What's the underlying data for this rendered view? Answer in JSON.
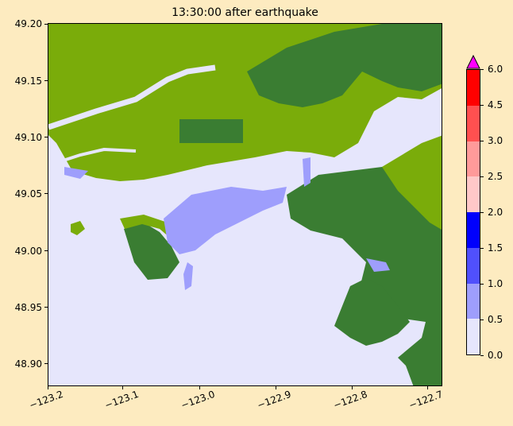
{
  "title": "13:30:00 after earthquake",
  "chart_data": {
    "type": "heatmap",
    "title": "13:30:00 after earthquake",
    "xlim": [
      -123.2,
      -122.69
    ],
    "ylim": [
      48.88,
      49.2
    ],
    "x_ticks": [
      "−123.2",
      "−123.1",
      "−123.0",
      "−122.9",
      "−122.8",
      "−122.7"
    ],
    "x_tick_values": [
      -123.2,
      -123.1,
      -123.0,
      -122.9,
      -122.8,
      -122.7
    ],
    "y_ticks": [
      "49.20",
      "49.15",
      "49.10",
      "49.05",
      "49.00",
      "48.95",
      "48.90"
    ],
    "y_tick_values": [
      49.2,
      49.15,
      49.1,
      49.05,
      49.0,
      48.95,
      48.9
    ],
    "colorbar": {
      "ticks": [
        "0.0",
        "0.5",
        "1.0",
        "1.5",
        "2.0",
        "2.5",
        "3.0",
        "4.5",
        "6.0"
      ],
      "bounds": [
        0.0,
        0.5,
        1.0,
        1.5,
        2.0,
        2.5,
        3.0,
        4.5,
        6.0
      ],
      "colors": [
        "#e6e6fc",
        "#9e9efc",
        "#5050fc",
        "#0000fc",
        "#ffc8c8",
        "#ff9a9a",
        "#ff5050",
        "#ff0000"
      ],
      "extend_max_color": "#ff00ff"
    },
    "land_colors": {
      "lowland": "#7aac0a",
      "highland": "#3a7d32"
    },
    "flood_color": "#9e9efc",
    "water_color": "#e6e6fc"
  }
}
